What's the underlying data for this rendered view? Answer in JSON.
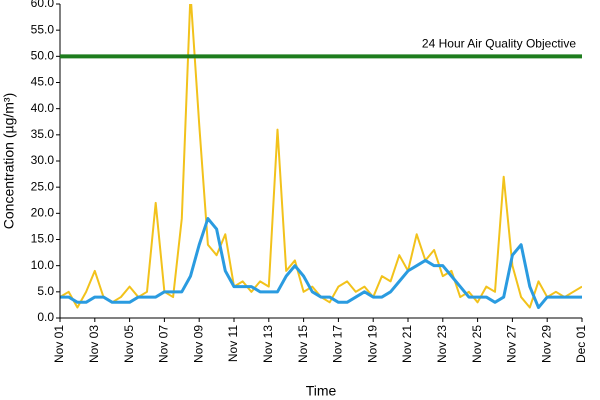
{
  "chart_data": {
    "type": "line",
    "ylabel": "Concentration (µg/m³)",
    "xlabel": "Time",
    "x": [
      0,
      0.5,
      1,
      1.5,
      2,
      2.5,
      3,
      3.5,
      4,
      4.5,
      5,
      5.5,
      6,
      6.5,
      7,
      7.5,
      8,
      8.5,
      9,
      9.5,
      10,
      10.5,
      11,
      11.5,
      12,
      12.5,
      13,
      13.5,
      14,
      14.5,
      15,
      15.5,
      16,
      16.5,
      17,
      17.5,
      18,
      18.5,
      19,
      19.5,
      20,
      20.5,
      21,
      21.5,
      22,
      22.5,
      23,
      23.5,
      24,
      24.5,
      25,
      25.5,
      26,
      26.5,
      27,
      27.5,
      28,
      28.5,
      29,
      29.5,
      30
    ],
    "series": [
      {
        "color": "#f2c21b",
        "width": 2,
        "values": [
          4,
          5,
          2,
          5,
          9,
          4,
          3,
          4,
          6,
          4,
          5,
          22,
          5,
          4,
          19,
          62,
          37,
          14,
          12,
          16,
          6,
          7,
          5,
          7,
          6,
          36,
          9,
          11,
          5,
          6,
          4,
          3,
          6,
          7,
          5,
          6,
          4,
          8,
          7,
          12,
          9,
          16,
          11,
          13,
          8,
          9,
          4,
          5,
          3,
          6,
          5,
          27,
          10,
          4,
          2,
          7,
          4,
          5,
          4,
          5,
          6
        ]
      },
      {
        "color": "#2a9be0",
        "width": 3,
        "values": [
          4,
          4,
          3,
          3,
          4,
          4,
          3,
          3,
          3,
          4,
          4,
          4,
          5,
          5,
          5,
          8,
          14,
          19,
          17,
          9,
          6,
          6,
          6,
          5,
          5,
          5,
          8,
          10,
          8,
          5,
          4,
          4,
          3,
          3,
          4,
          5,
          4,
          4,
          5,
          7,
          9,
          10,
          11,
          10,
          10,
          8,
          6,
          4,
          4,
          4,
          3,
          4,
          12,
          14,
          6,
          2,
          4,
          4,
          4,
          4,
          4
        ]
      }
    ],
    "threshold": {
      "value": 50,
      "label": "24 Hour Air Quality Objective",
      "color": "#1e7d1e"
    },
    "xlim": [
      0,
      30
    ],
    "xticks": [
      {
        "value": 0,
        "label": "Nov 01"
      },
      {
        "value": 2,
        "label": "Nov 03"
      },
      {
        "value": 4,
        "label": "Nov 05"
      },
      {
        "value": 6,
        "label": "Nov 07"
      },
      {
        "value": 8,
        "label": "Nov 09"
      },
      {
        "value": 10,
        "label": "Nov 11"
      },
      {
        "value": 12,
        "label": "Nov 13"
      },
      {
        "value": 14,
        "label": "Nov 15"
      },
      {
        "value": 16,
        "label": "Nov 17"
      },
      {
        "value": 18,
        "label": "Nov 19"
      },
      {
        "value": 20,
        "label": "Nov 21"
      },
      {
        "value": 22,
        "label": "Nov 23"
      },
      {
        "value": 24,
        "label": "Nov 25"
      },
      {
        "value": 26,
        "label": "Nov 27"
      },
      {
        "value": 28,
        "label": "Nov 29"
      },
      {
        "value": 30,
        "label": "Dec 01"
      }
    ],
    "ylim": [
      0,
      60
    ],
    "yticks": [
      {
        "value": 0,
        "label": "0.0"
      },
      {
        "value": 5,
        "label": "5.0"
      },
      {
        "value": 10,
        "label": "10.0"
      },
      {
        "value": 15,
        "label": "15.0"
      },
      {
        "value": 20,
        "label": "20.0"
      },
      {
        "value": 25,
        "label": "25.0"
      },
      {
        "value": 30,
        "label": "30.0"
      },
      {
        "value": 35,
        "label": "35.0"
      },
      {
        "value": 40,
        "label": "40.0"
      },
      {
        "value": 45,
        "label": "45.0"
      },
      {
        "value": 50,
        "label": "50.0"
      },
      {
        "value": 55,
        "label": "55.0"
      },
      {
        "value": 60,
        "label": "60.0"
      }
    ]
  }
}
